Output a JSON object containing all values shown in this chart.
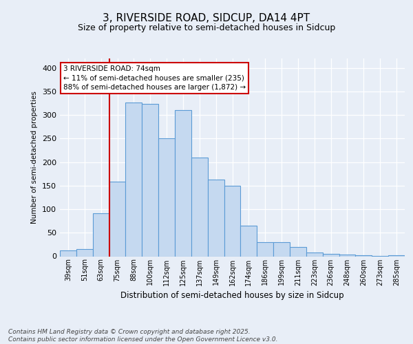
{
  "title1": "3, RIVERSIDE ROAD, SIDCUP, DA14 4PT",
  "title2": "Size of property relative to semi-detached houses in Sidcup",
  "xlabel": "Distribution of semi-detached houses by size in Sidcup",
  "ylabel": "Number of semi-detached properties",
  "bar_labels": [
    "39sqm",
    "51sqm",
    "63sqm",
    "75sqm",
    "88sqm",
    "100sqm",
    "112sqm",
    "125sqm",
    "137sqm",
    "149sqm",
    "162sqm",
    "174sqm",
    "186sqm",
    "199sqm",
    "211sqm",
    "223sqm",
    "236sqm",
    "248sqm",
    "260sqm",
    "273sqm",
    "285sqm"
  ],
  "bar_values": [
    12,
    15,
    92,
    158,
    327,
    323,
    250,
    311,
    210,
    163,
    150,
    65,
    30,
    30,
    20,
    8,
    5,
    3,
    2,
    1,
    2
  ],
  "bar_color": "#c5d9f0",
  "bar_edge_color": "#5b9bd5",
  "vline_color": "#cc0000",
  "vline_x": 3.5,
  "annotation_text": "3 RIVERSIDE ROAD: 74sqm\n← 11% of semi-detached houses are smaller (235)\n88% of semi-detached houses are larger (1,872) →",
  "annotation_box_facecolor": "#ffffff",
  "annotation_box_edgecolor": "#cc0000",
  "ylim": [
    0,
    420
  ],
  "yticks": [
    0,
    50,
    100,
    150,
    200,
    250,
    300,
    350,
    400
  ],
  "footer_text": "Contains HM Land Registry data © Crown copyright and database right 2025.\nContains public sector information licensed under the Open Government Licence v3.0.",
  "bg_color": "#e8eef7",
  "plot_bg_color": "#e8eef7",
  "title1_fontsize": 11,
  "title2_fontsize": 9
}
